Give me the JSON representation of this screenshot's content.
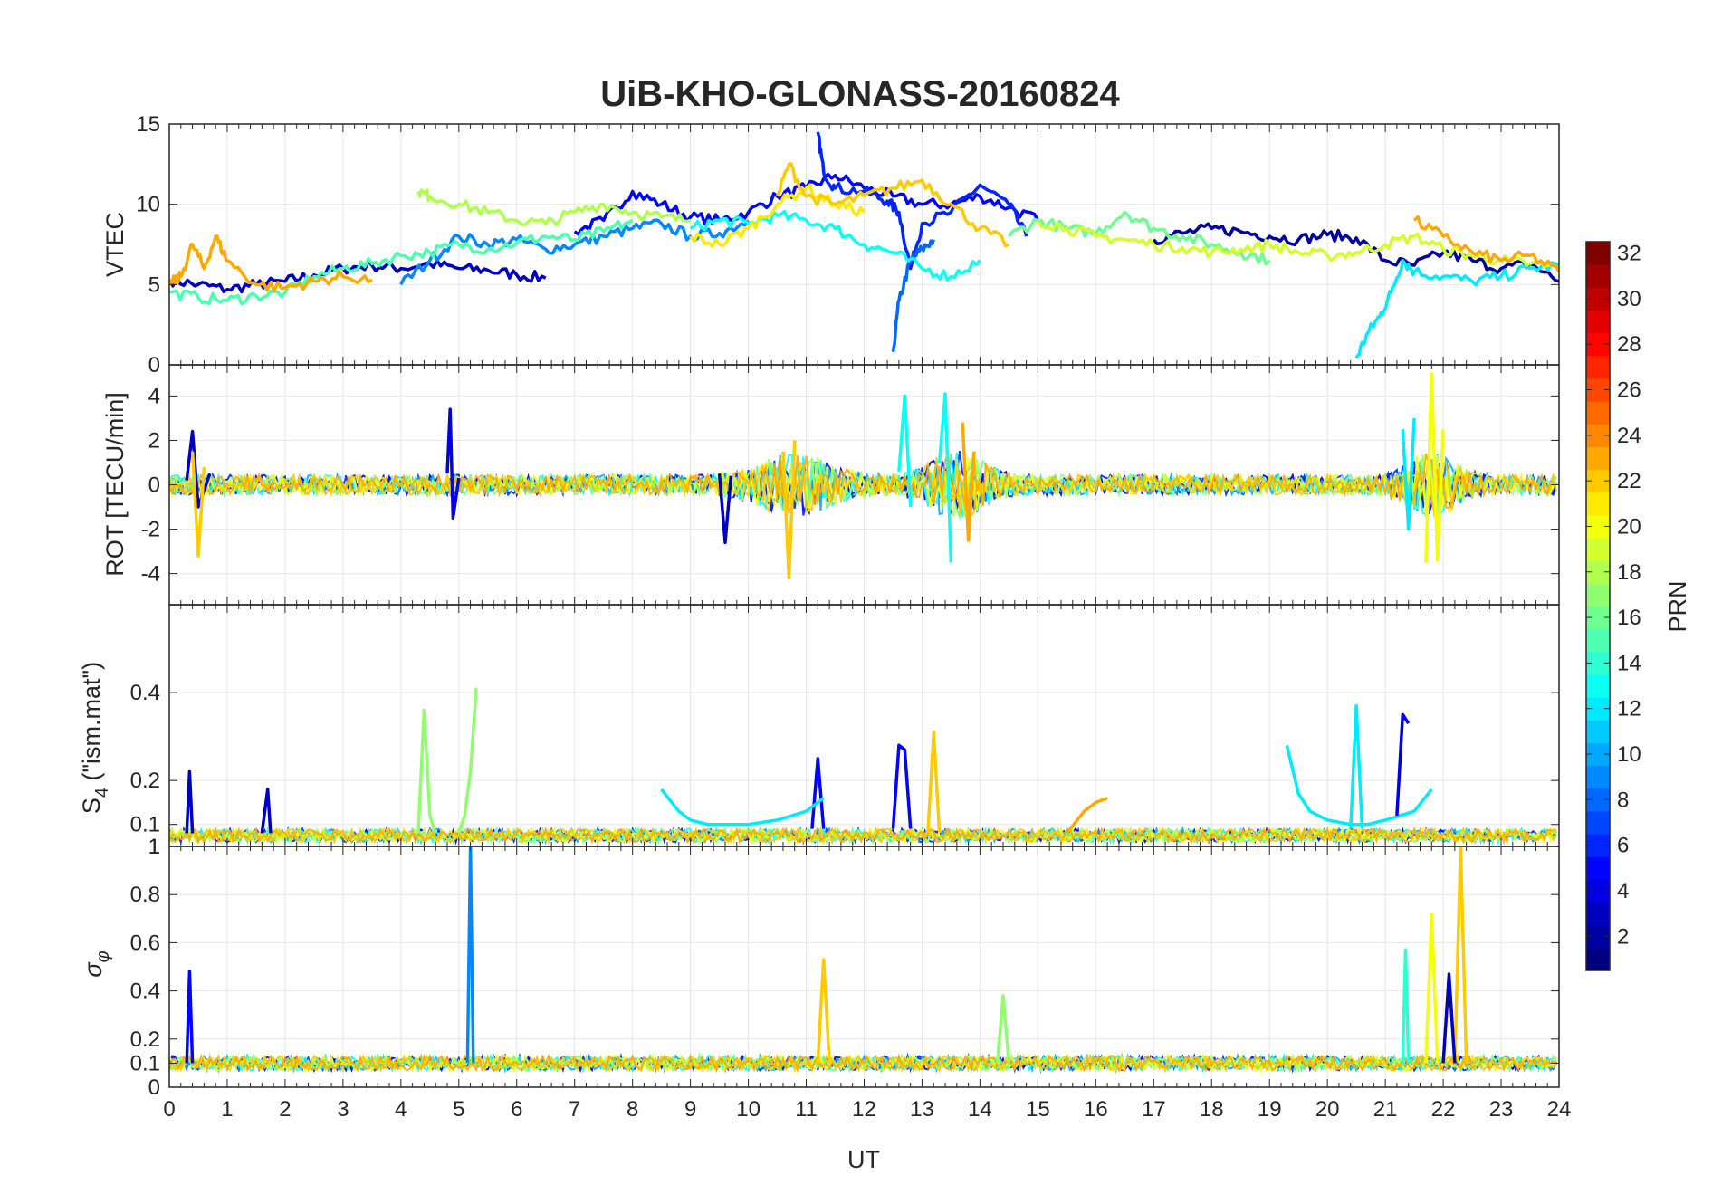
{
  "chart_data": {
    "type": "line",
    "title": "UiB-KHO-GLONASS-20160824",
    "xlabel": "UT",
    "xlim": [
      0,
      24
    ],
    "x_ticks": [
      "0",
      "1",
      "2",
      "3",
      "4",
      "5",
      "6",
      "7",
      "8",
      "9",
      "10",
      "11",
      "12",
      "13",
      "14",
      "15",
      "16",
      "17",
      "18",
      "19",
      "20",
      "21",
      "22",
      "23",
      "24"
    ],
    "grid": true,
    "colormap": "jet",
    "colorbar": {
      "label": "PRN",
      "range": [
        1,
        32
      ],
      "ticks": [
        "2",
        "4",
        "6",
        "8",
        "10",
        "12",
        "14",
        "16",
        "18",
        "20",
        "22",
        "24",
        "26",
        "28",
        "30",
        "32"
      ],
      "placement": "right"
    },
    "panels": [
      {
        "id": "vtec",
        "ylabel": "VTEC",
        "ylim": [
          0,
          15
        ],
        "y_ticks": [
          "0",
          "5",
          "10",
          "15"
        ],
        "series": [
          {
            "prn": 3,
            "x": [
              0,
              0.5,
              1,
              1.5,
              2,
              2.5,
              3,
              3.5,
              4,
              4.5,
              5,
              5.5,
              6,
              6.5
            ],
            "y": [
              5.3,
              5.0,
              4.7,
              5.0,
              5.2,
              5.6,
              6.0,
              6.2,
              6.0,
              6.3,
              6.0,
              5.9,
              5.6,
              5.4
            ]
          },
          {
            "prn": 5,
            "x": [
              7,
              7.5,
              8,
              8.5,
              9,
              9.5,
              10,
              10.5,
              11,
              11.5,
              12,
              12.5,
              13,
              13.5,
              14,
              14.5,
              15
            ],
            "y": [
              8.3,
              9.0,
              10.8,
              10.0,
              9.2,
              9.0,
              9.5,
              10.5,
              11.0,
              11.8,
              11.0,
              10.5,
              10.0,
              10.0,
              10.5,
              9.8,
              9.0
            ]
          },
          {
            "prn": 6,
            "x": [
              11.2,
              11.3,
              11.5,
              12,
              12.4,
              12.6,
              12.8,
              13,
              13.5,
              14,
              14.5,
              14.8
            ],
            "y": [
              14.5,
              12.0,
              11.0,
              10.8,
              10.2,
              9.5,
              6.0,
              8.8,
              9.5,
              11.2,
              10.0,
              8.0
            ]
          },
          {
            "prn": 8,
            "x": [
              12.5,
              12.6,
              12.8,
              13.0,
              13.2
            ],
            "y": [
              0.8,
              4.0,
              6.5,
              7.2,
              7.8
            ]
          },
          {
            "prn": 9,
            "x": [
              4,
              4.5,
              5,
              5.5,
              6,
              6.5,
              7,
              7.5,
              8,
              8.5,
              9,
              9.5,
              10
            ],
            "y": [
              5.0,
              6.5,
              8.0,
              7.5,
              7.8,
              7.2,
              7.5,
              8.0,
              8.5,
              8.8,
              8.0,
              8.2,
              9.0
            ]
          },
          {
            "prn": 2,
            "x": [
              17,
              17.5,
              18,
              18.5,
              19,
              19.5,
              20,
              20.5,
              21,
              21.5,
              22,
              22.5,
              23,
              23.5,
              24
            ],
            "y": [
              7.8,
              8.2,
              8.5,
              8.3,
              8.0,
              7.8,
              8.1,
              7.9,
              6.5,
              6.2,
              7.0,
              6.5,
              6.0,
              6.3,
              5.2
            ]
          },
          {
            "prn": 12,
            "x": [
              20.5,
              20.7,
              20.9,
              21.1,
              21.3,
              21.5,
              22,
              22.5,
              23,
              23.5,
              24
            ],
            "y": [
              0.4,
              2.0,
              3.0,
              4.5,
              6.5,
              5.8,
              5.5,
              5.2,
              5.5,
              6.0,
              6.2
            ]
          },
          {
            "prn": 13,
            "x": [
              9,
              9.5,
              10,
              10.5,
              11,
              11.5,
              12,
              12.5,
              13,
              13.5,
              14
            ],
            "y": [
              8.5,
              9.0,
              8.8,
              9.3,
              9.0,
              8.5,
              7.5,
              7.0,
              6.0,
              5.5,
              6.5
            ]
          },
          {
            "prn": 15,
            "x": [
              0,
              0.5,
              1,
              1.5,
              2,
              2.5,
              3,
              3.5,
              4,
              4.5,
              5,
              5.5,
              6,
              6.5,
              7,
              7.5,
              8
            ],
            "y": [
              4.5,
              4.2,
              4.0,
              4.3,
              4.5,
              5.5,
              6.0,
              6.3,
              6.8,
              7.0,
              7.5,
              7.2,
              7.6,
              8.0,
              7.8,
              8.3,
              9.0
            ]
          },
          {
            "prn": 16,
            "x": [
              14.5,
              15,
              15.5,
              16,
              16.5,
              17,
              17.5,
              18,
              18.5,
              19
            ],
            "y": [
              8.0,
              9.0,
              8.5,
              8.2,
              9.5,
              8.5,
              8.0,
              7.5,
              7.0,
              6.5
            ]
          },
          {
            "prn": 18,
            "x": [
              4.3,
              4.5,
              5,
              5.5,
              6,
              6.5,
              7,
              7.5,
              8,
              8.5,
              9
            ],
            "y": [
              10.8,
              10.5,
              10.0,
              9.5,
              9.0,
              8.8,
              9.5,
              10.0,
              9.5,
              9.2,
              9.0
            ]
          },
          {
            "prn": 19,
            "x": [
              15,
              15.5,
              16,
              16.5,
              17,
              17.5,
              18,
              18.5,
              19,
              19.5,
              20,
              20.5,
              21,
              21.5,
              22,
              22.5,
              23,
              23.5,
              24
            ],
            "y": [
              9.0,
              8.5,
              8.0,
              7.8,
              7.5,
              7.3,
              7.0,
              7.2,
              7.5,
              7.0,
              6.8,
              7.0,
              7.5,
              8.0,
              7.2,
              6.8,
              6.5,
              6.3,
              6.0
            ]
          },
          {
            "prn": 21,
            "x": [
              9,
              9.5,
              10,
              10.5,
              11,
              11.5,
              12
            ],
            "y": [
              8.0,
              7.5,
              8.5,
              10.0,
              11.0,
              10.0,
              9.5
            ]
          },
          {
            "prn": 22,
            "x": [
              10.5,
              10.7,
              11,
              11.5,
              12,
              12.5,
              13,
              13.5,
              14,
              14.5
            ],
            "y": [
              10.5,
              12.5,
              10.5,
              10.0,
              10.5,
              11.0,
              11.5,
              10.0,
              8.5,
              7.5
            ]
          },
          {
            "prn": 23,
            "x": [
              0,
              0.2,
              0.4,
              0.6,
              0.8,
              1,
              1.5,
              2,
              2.5,
              3,
              3.5
            ],
            "y": [
              5.0,
              5.5,
              7.5,
              6.0,
              8.0,
              6.5,
              5.0,
              4.8,
              5.2,
              5.5,
              5.3
            ]
          },
          {
            "prn": 23,
            "x": [
              21.5,
              22,
              22.5,
              23,
              23.5,
              24
            ],
            "y": [
              9.0,
              8.0,
              7.0,
              6.5,
              6.8,
              5.8
            ]
          }
        ]
      },
      {
        "id": "rot",
        "ylabel": "ROT [TECU/min]",
        "ylim": [
          -5.4,
          5.4
        ],
        "y_ticks": [
          "-4",
          "-2",
          "0",
          "2",
          "4"
        ],
        "series": [
          {
            "prn": 3,
            "x": [
              0.3,
              0.4,
              0.5,
              0.7
            ],
            "y": [
              0.2,
              2.4,
              -1.0,
              0.5
            ]
          },
          {
            "prn": 4,
            "x": [
              4.8,
              4.85,
              4.9,
              5.0
            ],
            "y": [
              0.5,
              3.4,
              -1.5,
              0.3
            ]
          },
          {
            "prn": 3,
            "x": [
              9.5,
              9.6,
              9.7
            ],
            "y": [
              0.5,
              -2.6,
              0.4
            ]
          },
          {
            "prn": 13,
            "x": [
              12.6,
              12.7,
              12.8
            ],
            "y": [
              0.6,
              4.0,
              -1.0
            ]
          },
          {
            "prn": 13,
            "x": [
              13.3,
              13.4,
              13.5
            ],
            "y": [
              1.0,
              4.1,
              -3.5
            ]
          },
          {
            "prn": 22,
            "x": [
              10.6,
              10.7,
              10.8
            ],
            "y": [
              1.5,
              -4.2,
              2.0
            ]
          },
          {
            "prn": 23,
            "x": [
              13.7,
              13.8,
              13.9
            ],
            "y": [
              2.8,
              -2.5,
              1.5
            ]
          },
          {
            "prn": 20,
            "x": [
              21.7,
              21.8,
              21.9,
              22.0
            ],
            "y": [
              -3.5,
              5.0,
              -3.4,
              2.5
            ]
          },
          {
            "prn": 12,
            "x": [
              21.3,
              21.4,
              21.5
            ],
            "y": [
              2.5,
              -2.0,
              3.0
            ]
          },
          {
            "prn": 22,
            "x": [
              0.4,
              0.5,
              0.6
            ],
            "y": [
              1.5,
              -3.2,
              0.8
            ]
          }
        ]
      },
      {
        "id": "s4",
        "ylabel": "S4 (\"ism.mat\")",
        "ylim": [
          0.05,
          0.6
        ],
        "y_ticks": [
          "0.1",
          "0.2",
          "0.4"
        ],
        "y_top_tick": "1",
        "series": [
          {
            "prn": 3,
            "x": [
              0.3,
              0.35,
              0.4
            ],
            "y": [
              0.08,
              0.22,
              0.08
            ]
          },
          {
            "prn": 3,
            "x": [
              1.6,
              1.7,
              1.75
            ],
            "y": [
              0.08,
              0.18,
              0.08
            ]
          },
          {
            "prn": 17,
            "x": [
              4.3,
              4.4,
              4.5,
              4.6
            ],
            "y": [
              0.08,
              0.36,
              0.12,
              0.08
            ]
          },
          {
            "prn": 17,
            "x": [
              5.0,
              5.1,
              5.2,
              5.3
            ],
            "y": [
              0.08,
              0.12,
              0.22,
              0.41
            ]
          },
          {
            "prn": 5,
            "x": [
              11.1,
              11.2,
              11.3
            ],
            "y": [
              0.09,
              0.25,
              0.09
            ]
          },
          {
            "prn": 5,
            "x": [
              12.5,
              12.6,
              12.7,
              12.8
            ],
            "y": [
              0.09,
              0.28,
              0.27,
              0.09
            ]
          },
          {
            "prn": 22,
            "x": [
              13.1,
              13.2,
              13.3
            ],
            "y": [
              0.08,
              0.31,
              0.08
            ]
          },
          {
            "prn": 12,
            "x": [
              8.5,
              8.8,
              9.0,
              9.3,
              9.6,
              10.0,
              10.5,
              11.0,
              11.3
            ],
            "y": [
              0.18,
              0.13,
              0.11,
              0.1,
              0.1,
              0.1,
              0.11,
              0.13,
              0.16
            ]
          },
          {
            "prn": 12,
            "x": [
              19.3,
              19.5,
              19.7,
              20.0,
              20.4,
              20.7,
              21.0,
              21.5,
              21.8
            ],
            "y": [
              0.28,
              0.17,
              0.13,
              0.11,
              0.1,
              0.1,
              0.11,
              0.13,
              0.18
            ]
          },
          {
            "prn": 12,
            "x": [
              20.4,
              20.5,
              20.6
            ],
            "y": [
              0.09,
              0.37,
              0.09
            ]
          },
          {
            "prn": 4,
            "x": [
              21.2,
              21.3,
              21.4
            ],
            "y": [
              0.12,
              0.35,
              0.33
            ]
          },
          {
            "prn": 23,
            "x": [
              15.5,
              15.8,
              16.0,
              16.2
            ],
            "y": [
              0.08,
              0.13,
              0.15,
              0.16
            ]
          }
        ]
      },
      {
        "id": "sigma_phi",
        "ylabel": "σφ",
        "ylim": [
          0,
          1
        ],
        "y_ticks": [
          "0",
          "0.1",
          "0.2",
          "0.4",
          "0.6",
          "0.8",
          "1"
        ],
        "series": [
          {
            "prn": 9,
            "x": [
              5.15,
              5.2,
              5.25
            ],
            "y": [
              0.1,
              1.0,
              0.1
            ]
          },
          {
            "prn": 5,
            "x": [
              0.3,
              0.35,
              0.4
            ],
            "y": [
              0.1,
              0.48,
              0.1
            ]
          },
          {
            "prn": 22,
            "x": [
              11.2,
              11.3,
              11.4
            ],
            "y": [
              0.1,
              0.53,
              0.1
            ]
          },
          {
            "prn": 20,
            "x": [
              21.7,
              21.8,
              21.9
            ],
            "y": [
              0.1,
              0.72,
              0.1
            ]
          },
          {
            "prn": 14,
            "x": [
              21.3,
              21.35,
              21.4
            ],
            "y": [
              0.1,
              0.57,
              0.1
            ]
          },
          {
            "prn": 22,
            "x": [
              22.2,
              22.3,
              22.4
            ],
            "y": [
              0.1,
              1.0,
              0.1
            ]
          },
          {
            "prn": 3,
            "x": [
              22.0,
              22.1,
              22.2
            ],
            "y": [
              0.1,
              0.47,
              0.1
            ]
          },
          {
            "prn": 17,
            "x": [
              14.3,
              14.4,
              14.5
            ],
            "y": [
              0.1,
              0.38,
              0.1
            ]
          }
        ]
      }
    ]
  }
}
